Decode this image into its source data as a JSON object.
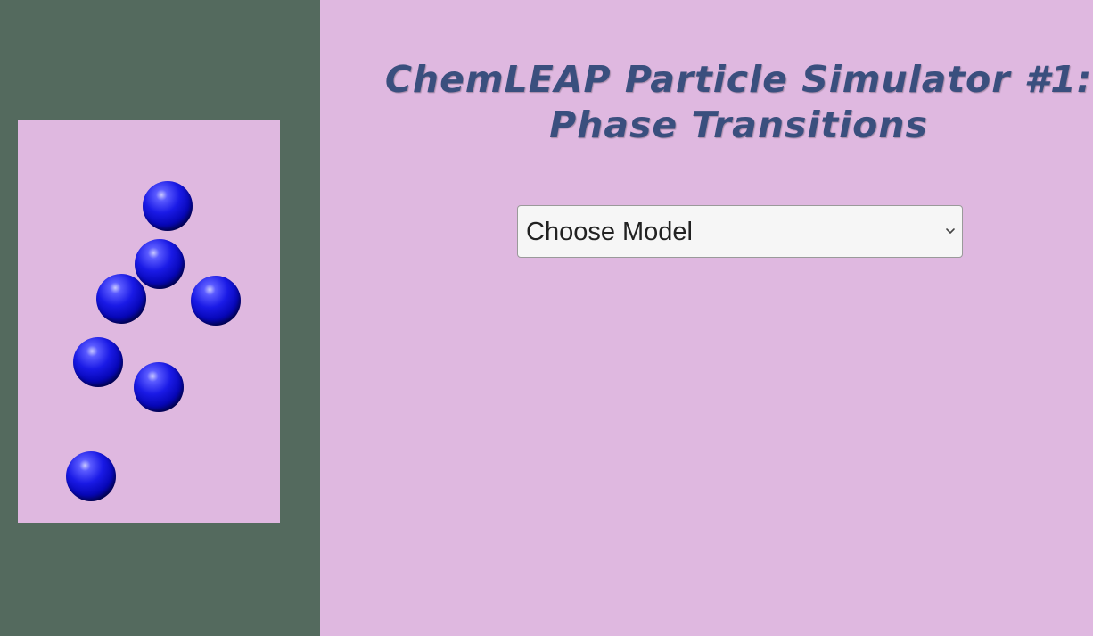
{
  "title": {
    "line1": "ChemLEAP Particle Simulator #1:",
    "line2": "Phase Transitions"
  },
  "model_select": {
    "selected": "Choose Model",
    "options": [
      "Choose Model"
    ]
  },
  "simulation": {
    "particle_count": 7
  },
  "colors": {
    "left_background": "#546a5e",
    "sim_box_background": "#dfb8e0",
    "right_background": "#dfb8e0",
    "title_color": "#3a4f7e",
    "particle_color": "#0a0ad0"
  },
  "icons": {
    "select_arrow": "chevron-down-icon"
  }
}
